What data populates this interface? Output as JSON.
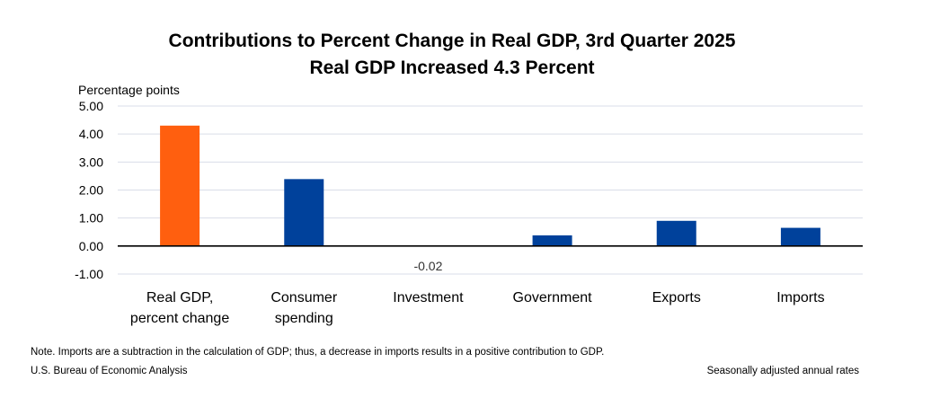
{
  "chart_data": {
    "type": "bar",
    "title": "Contributions to Percent Change in Real GDP, 3rd Quarter 2025",
    "subtitle": "Real GDP Increased 4.3 Percent",
    "ylabel": "Percentage points",
    "xlabel": "",
    "categories": [
      [
        "Real GDP,",
        "percent change"
      ],
      [
        "Consumer",
        "spending"
      ],
      [
        "Investment"
      ],
      [
        "Government"
      ],
      [
        "Exports"
      ],
      [
        "Imports"
      ]
    ],
    "values": [
      4.3,
      2.39,
      -0.02,
      0.38,
      0.9,
      0.65
    ],
    "data_labels": [
      "",
      "",
      "-0.02",
      "",
      "",
      ""
    ],
    "bar_colors": [
      "#ff5f0f",
      "#00419b",
      "#00419b",
      "#00419b",
      "#00419b",
      "#00419b"
    ],
    "ylim": [
      -1.0,
      5.0
    ],
    "yticks": [
      5.0,
      4.0,
      3.0,
      2.0,
      1.0,
      0.0,
      -1.0
    ],
    "ytick_labels": [
      "5.00",
      "4.00",
      "3.00",
      "2.00",
      "1.00",
      "0.00",
      "-1.00"
    ],
    "grid": true,
    "legend": "none"
  },
  "footer": {
    "note": "Note. Imports are a subtraction in the calculation of GDP; thus, a decrease in imports results in a positive contribution to GDP.",
    "source": "U.S. Bureau of Economic Analysis",
    "rates": "Seasonally adjusted annual rates"
  },
  "colors": {
    "grid": "#d9dde8",
    "zero_line": "#000000",
    "highlight_bar": "#ff5f0f",
    "component_bar": "#00419b"
  }
}
